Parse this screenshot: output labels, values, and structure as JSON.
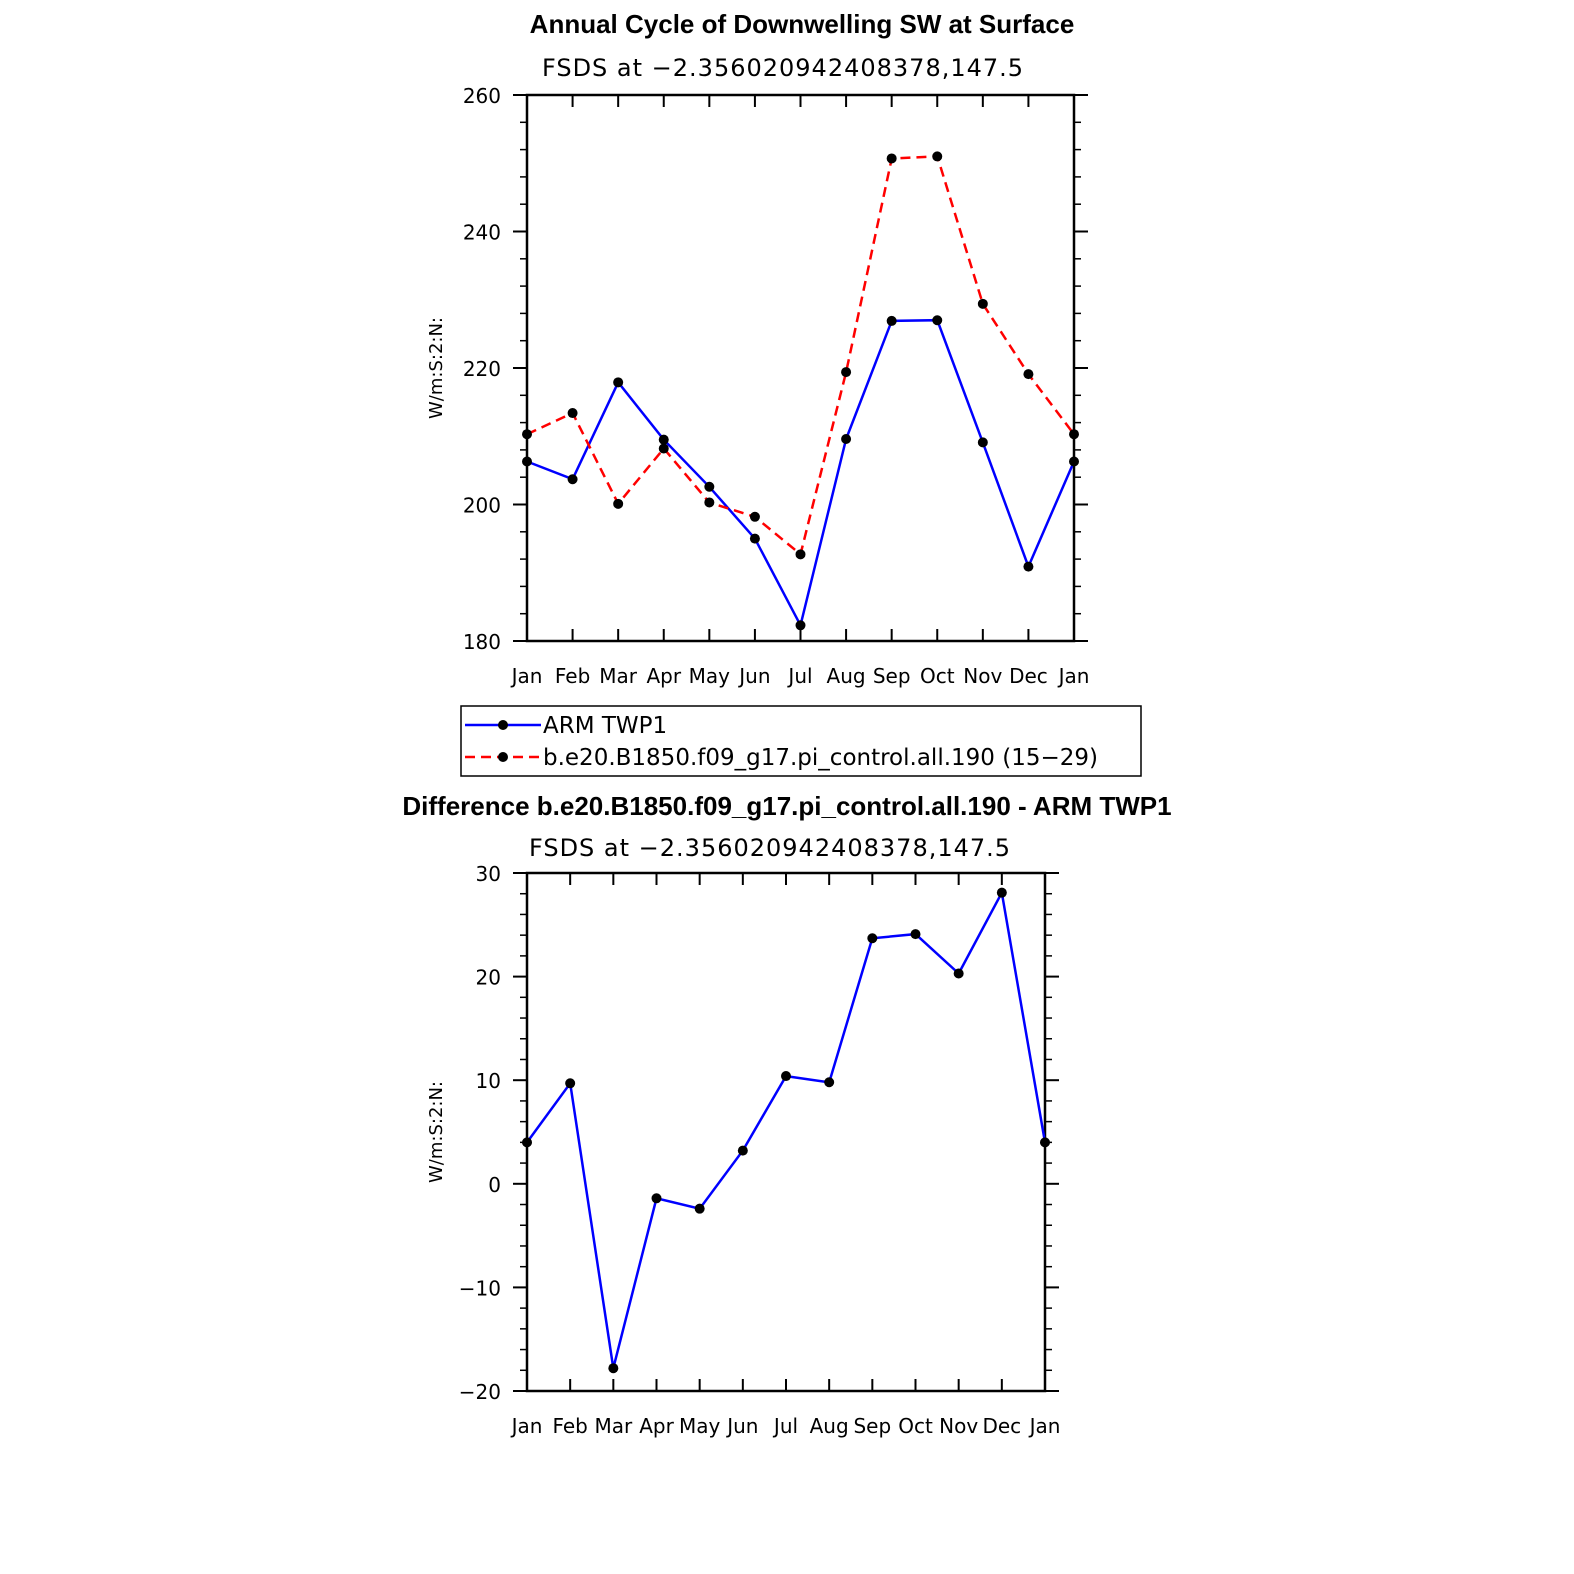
{
  "chart_data": [
    {
      "type": "line",
      "title": "Annual Cycle of Downwelling SW at Surface",
      "subtitle": "FSDS at −2.356020942408378,147.5",
      "xlabel": "",
      "ylabel": "W/m:S:2:N:",
      "categories": [
        "Jan",
        "Feb",
        "Mar",
        "Apr",
        "May",
        "Jun",
        "Jul",
        "Aug",
        "Sep",
        "Oct",
        "Nov",
        "Dec",
        "Jan"
      ],
      "ylim": [
        180,
        260
      ],
      "yticks": [
        "180",
        "200",
        "220",
        "240",
        "260"
      ],
      "grid": false,
      "legend": "below",
      "series": [
        {
          "name": "ARM TWP1",
          "color": "#0000ff",
          "style": "solid",
          "values": [
            206.3,
            203.7,
            217.9,
            209.5,
            202.6,
            195.0,
            182.3,
            209.6,
            226.9,
            227.0,
            209.1,
            190.9,
            206.3
          ]
        },
        {
          "name": "b.e20.B1850.f09_g17.pi_control.all.190 (15−29)",
          "color": "#ff0000",
          "style": "dashed",
          "values": [
            210.3,
            213.4,
            200.1,
            208.2,
            200.3,
            198.2,
            192.7,
            219.4,
            250.7,
            251.0,
            229.4,
            219.1,
            210.3
          ]
        }
      ]
    },
    {
      "type": "line",
      "title": "Difference b.e20.B1850.f09_g17.pi_control.all.190 - ARM TWP1",
      "subtitle": "FSDS at −2.356020942408378,147.5",
      "xlabel": "",
      "ylabel": "W/m:S:2:N:",
      "categories": [
        "Jan",
        "Feb",
        "Mar",
        "Apr",
        "May",
        "Jun",
        "Jul",
        "Aug",
        "Sep",
        "Oct",
        "Nov",
        "Dec",
        "Jan"
      ],
      "ylim": [
        -20,
        30
      ],
      "yticks": [
        "−20",
        "−10",
        "0",
        "10",
        "20",
        "30"
      ],
      "grid": false,
      "series": [
        {
          "color": "#0000ff",
          "style": "solid",
          "values": [
            4.0,
            9.7,
            -17.8,
            -1.4,
            -2.4,
            3.2,
            10.4,
            9.8,
            23.7,
            24.1,
            20.3,
            28.1,
            4.0
          ]
        }
      ]
    }
  ]
}
